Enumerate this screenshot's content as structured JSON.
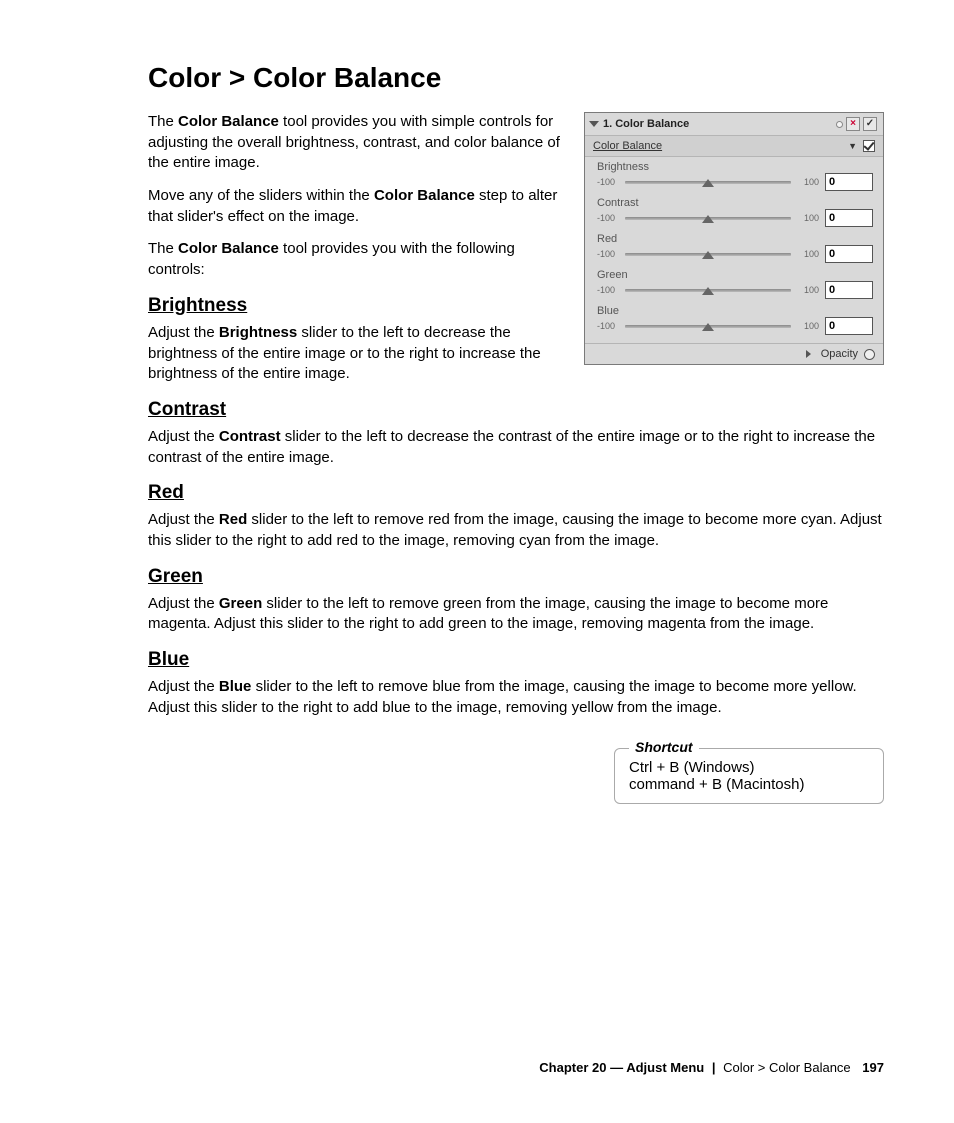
{
  "page_title": "Color > Color Balance",
  "intro": {
    "p1_pre": "The ",
    "p1_bold": "Color Balance",
    "p1_post": " tool provides you with simple controls for adjusting the overall brightness, contrast, and color balance of the entire image.",
    "p2_pre": "Move any of the sliders within the ",
    "p2_bold": "Color Balance",
    "p2_post": " step to alter that slider's effect on the image.",
    "p3_pre": "The ",
    "p3_bold": "Color Balance",
    "p3_post": " tool provides you with the following controls:"
  },
  "sections": {
    "brightness": {
      "head": "Brightness",
      "pre": "Adjust the ",
      "bold": "Brightness",
      "post": " slider to the left to decrease the brightness of the entire image or to the right to increase the brightness of the entire image."
    },
    "contrast": {
      "head": "Contrast",
      "pre": "Adjust the ",
      "bold": "Contrast",
      "post": " slider to the left to decrease the contrast of the entire image or to the right to increase the contrast of the entire image."
    },
    "red": {
      "head": "Red",
      "pre": "Adjust the ",
      "bold": "Red",
      "post": " slider to the left to remove red from the image, causing the image to become more cyan. Adjust this slider to the right to add red to the image, removing cyan from the image."
    },
    "green": {
      "head": "Green",
      "pre": "Adjust the ",
      "bold": "Green",
      "post": " slider to the left to remove green from the image, causing the image to become more magenta. Adjust this slider to the right to add green to the image, removing magenta from the image."
    },
    "blue": {
      "head": "Blue",
      "pre": "Adjust the ",
      "bold": "Blue",
      "post": " slider to the left to remove blue from the image, causing the image to become more yellow. Adjust this slider to the right to add blue to the image, removing yellow from the image."
    }
  },
  "panel": {
    "title": "1. Color Balance",
    "subtitle": "Color Balance",
    "subtitle_checked": true,
    "sliders": [
      {
        "label": "Brightness",
        "min": "-100",
        "max": "100",
        "value": "0"
      },
      {
        "label": "Contrast",
        "min": "-100",
        "max": "100",
        "value": "0"
      },
      {
        "label": "Red",
        "min": "-100",
        "max": "100",
        "value": "0"
      },
      {
        "label": "Green",
        "min": "-100",
        "max": "100",
        "value": "0"
      },
      {
        "label": "Blue",
        "min": "-100",
        "max": "100",
        "value": "0"
      }
    ],
    "footer_label": "Opacity",
    "colors": {
      "panel_bg": "#d9d9d9",
      "panel_border": "#7a7a7a",
      "track": "#999999",
      "thumb": "#666666"
    }
  },
  "shortcut": {
    "legend": "Shortcut",
    "line1": "Ctrl + B (Windows)",
    "line2": "command + B (Macintosh)"
  },
  "footer": {
    "chapter": "Chapter 20 — Adjust Menu",
    "section": "Color > Color Balance",
    "page": "197"
  }
}
